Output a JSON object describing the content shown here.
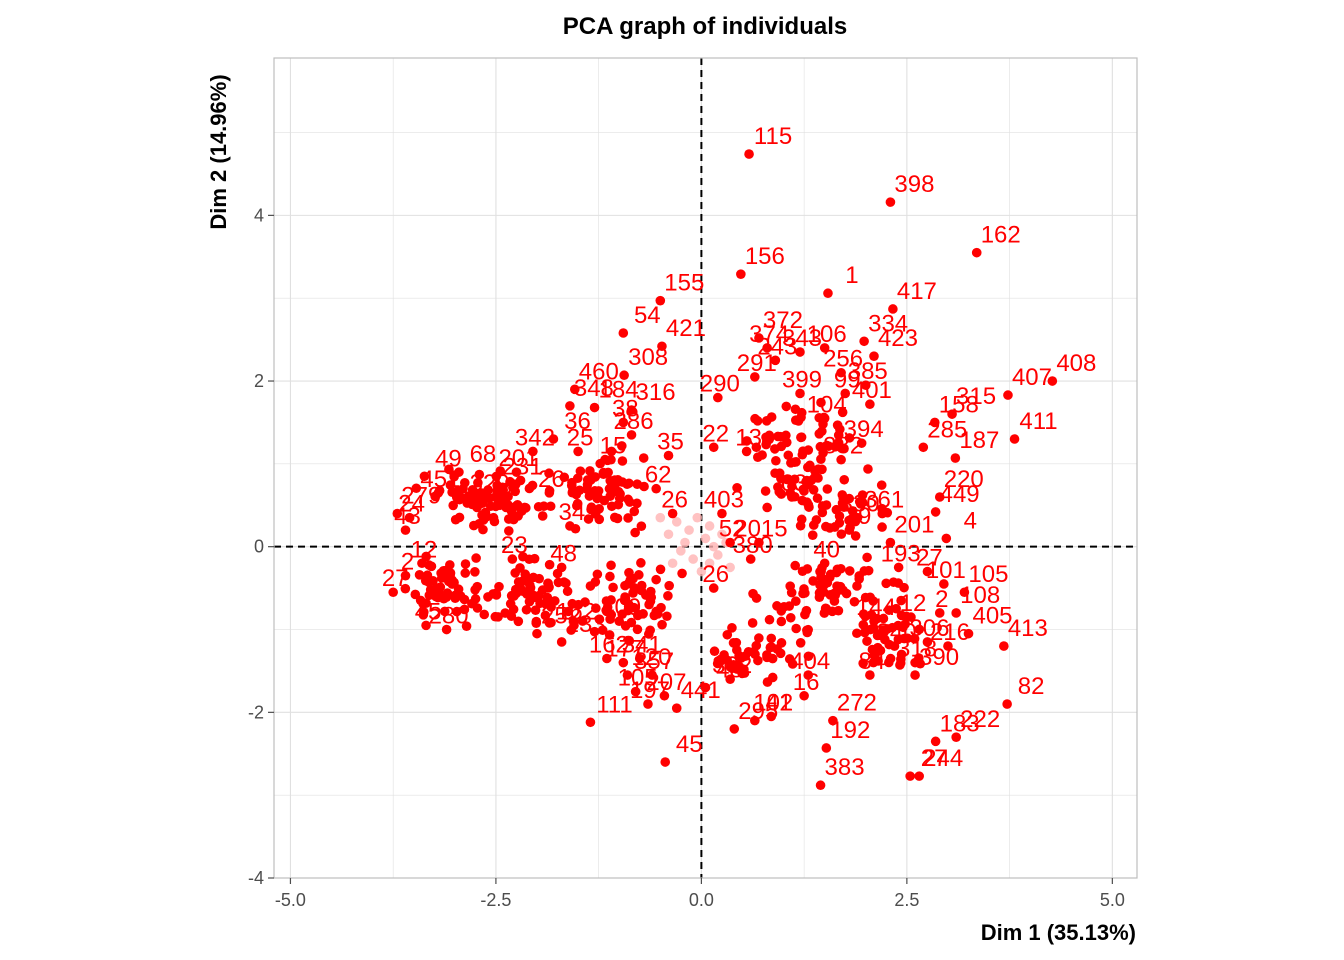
{
  "chart_data": {
    "type": "scatter",
    "title": "PCA graph of individuals",
    "xlabel": "Dim 1 (35.13%)",
    "ylabel": "Dim 2 (14.96%)",
    "xlim": [
      -5.2,
      5.3
    ],
    "ylim": [
      -4.0,
      5.9
    ],
    "x_ticks": [
      -5.0,
      -2.5,
      0.0,
      2.5,
      5.0
    ],
    "x_tick_labels": [
      "-5.0",
      "-2.5",
      "0.0",
      "2.5",
      "5.0"
    ],
    "y_ticks": [
      -4,
      -2,
      0,
      2,
      4
    ],
    "y_tick_labels": [
      "-4",
      "-2",
      "0",
      "2",
      "4"
    ],
    "grid": true,
    "reference_lines": {
      "x": 0,
      "y": 0,
      "style": "dashed"
    },
    "colors": {
      "point": "#ff0000",
      "point_faded": "#ffb3b3",
      "grid": "#e0e0e0",
      "panel_border": "#bdbdbd",
      "tick_text": "#4d4d4d"
    },
    "labeled_points": [
      {
        "label": "115",
        "x": 0.58,
        "y": 4.74
      },
      {
        "label": "398",
        "x": 2.3,
        "y": 4.16
      },
      {
        "label": "162",
        "x": 3.35,
        "y": 3.55
      },
      {
        "label": "156",
        "x": 0.48,
        "y": 3.29
      },
      {
        "label": "1",
        "x": 1.54,
        "y": 3.06
      },
      {
        "label": "417",
        "x": 2.33,
        "y": 2.87
      },
      {
        "label": "155",
        "x": -0.5,
        "y": 2.97
      },
      {
        "label": "421",
        "x": -0.48,
        "y": 2.42
      },
      {
        "label": "54",
        "x": -0.95,
        "y": 2.58
      },
      {
        "label": "308",
        "x": -0.94,
        "y": 2.07
      },
      {
        "label": "372",
        "x": 0.7,
        "y": 2.52
      },
      {
        "label": "334",
        "x": 1.98,
        "y": 2.48
      },
      {
        "label": "423",
        "x": 2.1,
        "y": 2.3
      },
      {
        "label": "408",
        "x": 4.27,
        "y": 2.0
      },
      {
        "label": "407",
        "x": 3.73,
        "y": 1.83
      },
      {
        "label": "411",
        "x": 3.81,
        "y": 1.3
      },
      {
        "label": "315",
        "x": 3.05,
        "y": 1.6
      },
      {
        "label": "158",
        "x": 2.84,
        "y": 1.5
      },
      {
        "label": "187",
        "x": 3.09,
        "y": 1.07
      },
      {
        "label": "285",
        "x": 2.7,
        "y": 1.2
      },
      {
        "label": "460",
        "x": -1.54,
        "y": 1.9
      },
      {
        "label": "348",
        "x": -1.6,
        "y": 1.7
      },
      {
        "label": "184",
        "x": -1.3,
        "y": 1.68
      },
      {
        "label": "316",
        "x": -0.85,
        "y": 1.65
      },
      {
        "label": "36",
        "x": -1.8,
        "y": 1.3
      },
      {
        "label": "49",
        "x": -3.37,
        "y": 0.85
      },
      {
        "label": "68",
        "x": -2.95,
        "y": 0.9
      },
      {
        "label": "279",
        "x": -3.7,
        "y": 0.4
      },
      {
        "label": "220",
        "x": 2.9,
        "y": 0.6
      },
      {
        "label": "449",
        "x": 2.85,
        "y": 0.42
      },
      {
        "label": "4",
        "x": 2.98,
        "y": 0.1
      },
      {
        "label": "201",
        "x": 2.3,
        "y": 0.05
      },
      {
        "label": "108",
        "x": 3.1,
        "y": -0.8
      },
      {
        "label": "105",
        "x": 3.2,
        "y": -0.55
      },
      {
        "label": "405",
        "x": 3.25,
        "y": -1.05
      },
      {
        "label": "413",
        "x": 3.68,
        "y": -1.2
      },
      {
        "label": "82",
        "x": 3.72,
        "y": -1.9
      },
      {
        "label": "222",
        "x": 3.1,
        "y": -2.3
      },
      {
        "label": "183",
        "x": 2.85,
        "y": -2.35
      },
      {
        "label": "244",
        "x": 2.65,
        "y": -2.77
      },
      {
        "label": "27",
        "x": 2.54,
        "y": -2.77
      },
      {
        "label": "390",
        "x": 2.6,
        "y": -1.55
      },
      {
        "label": "192",
        "x": 1.52,
        "y": -2.43
      },
      {
        "label": "383",
        "x": 1.45,
        "y": -2.88
      },
      {
        "label": "272",
        "x": 1.6,
        "y": -2.1
      },
      {
        "label": "295",
        "x": 0.4,
        "y": -2.2
      },
      {
        "label": "41",
        "x": 0.65,
        "y": -2.1
      },
      {
        "label": "48",
        "x": 0.05,
        "y": -1.7
      },
      {
        "label": "111",
        "x": -1.35,
        "y": -2.12
      },
      {
        "label": "45",
        "x": -0.44,
        "y": -2.6
      },
      {
        "label": "441",
        "x": -0.3,
        "y": -1.95
      },
      {
        "label": "120",
        "x": -0.9,
        "y": -1.55
      },
      {
        "label": "252",
        "x": -2.0,
        "y": -1.05
      },
      {
        "label": "133",
        "x": -1.7,
        "y": -1.15
      }
    ],
    "crowded_labels": [
      {
        "label": "291",
        "x": 0.65,
        "y": 2.05
      },
      {
        "label": "290",
        "x": 0.2,
        "y": 1.8
      },
      {
        "label": "399",
        "x": 1.2,
        "y": 1.85
      },
      {
        "label": "99",
        "x": 1.75,
        "y": 1.85
      },
      {
        "label": "401",
        "x": 2.05,
        "y": 1.72
      },
      {
        "label": "394",
        "x": 1.95,
        "y": 1.25
      },
      {
        "label": "382",
        "x": 1.7,
        "y": 1.05
      },
      {
        "label": "104",
        "x": 1.5,
        "y": 1.55
      },
      {
        "label": "256",
        "x": 1.7,
        "y": 2.1
      },
      {
        "label": "385",
        "x": 2.0,
        "y": 1.95
      },
      {
        "label": "343",
        "x": 1.2,
        "y": 2.35
      },
      {
        "label": "374",
        "x": 0.8,
        "y": 2.4
      },
      {
        "label": "106",
        "x": 1.5,
        "y": 2.4
      },
      {
        "label": "243",
        "x": 0.9,
        "y": 2.25
      },
      {
        "label": "13",
        "x": 0.55,
        "y": 1.15
      },
      {
        "label": "22",
        "x": 0.15,
        "y": 1.2
      },
      {
        "label": "403",
        "x": 0.25,
        "y": 0.4
      },
      {
        "label": "52",
        "x": 0.35,
        "y": 0.05
      },
      {
        "label": "2015",
        "x": 0.7,
        "y": 0.05
      },
      {
        "label": "63",
        "x": 1.1,
        "y": 0.6
      },
      {
        "label": "139",
        "x": 1.8,
        "y": 0.2
      },
      {
        "label": "361",
        "x": 2.2,
        "y": 0.4
      },
      {
        "label": "330",
        "x": 1.9,
        "y": 0.35
      },
      {
        "label": "380",
        "x": 0.6,
        "y": -0.15
      },
      {
        "label": "40",
        "x": 1.5,
        "y": -0.2
      },
      {
        "label": "193",
        "x": 2.4,
        "y": -0.25
      },
      {
        "label": "27",
        "x": 2.75,
        "y": -0.3
      },
      {
        "label": "101",
        "x": 2.95,
        "y": -0.45
      },
      {
        "label": "2",
        "x": 2.9,
        "y": -0.8
      },
      {
        "label": "12",
        "x": 2.55,
        "y": -0.85
      },
      {
        "label": "144",
        "x": 2.1,
        "y": -0.9
      },
      {
        "label": "306",
        "x": 2.75,
        "y": -1.15
      },
      {
        "label": "216",
        "x": 3.0,
        "y": -1.2
      },
      {
        "label": "318",
        "x": 2.6,
        "y": -1.4
      },
      {
        "label": "240",
        "x": 2.35,
        "y": -1.2
      },
      {
        "label": "84",
        "x": 2.05,
        "y": -1.55
      },
      {
        "label": "404",
        "x": 1.3,
        "y": -1.55
      },
      {
        "label": "16",
        "x": 1.25,
        "y": -1.8
      },
      {
        "label": "102",
        "x": 0.85,
        "y": -2.05
      },
      {
        "label": "302",
        "x": 0.35,
        "y": -1.6
      },
      {
        "label": "26",
        "x": 0.15,
        "y": -0.5
      },
      {
        "label": "341",
        "x": -0.75,
        "y": -1.35
      },
      {
        "label": "357",
        "x": -0.6,
        "y": -1.55
      },
      {
        "label": "177",
        "x": -0.95,
        "y": -1.4
      },
      {
        "label": "105",
        "x": -0.8,
        "y": -1.75
      },
      {
        "label": "197",
        "x": -0.65,
        "y": -1.9
      },
      {
        "label": "207",
        "x": -0.45,
        "y": -1.8
      },
      {
        "label": "162",
        "x": -1.15,
        "y": -1.35
      },
      {
        "label": "409",
        "x": -1.0,
        "y": -0.9
      },
      {
        "label": "162",
        "x": -1.55,
        "y": -0.95
      },
      {
        "label": "48",
        "x": -1.7,
        "y": -0.25
      },
      {
        "label": "23",
        "x": -2.3,
        "y": -0.15
      },
      {
        "label": "280",
        "x": -3.1,
        "y": -1.0
      },
      {
        "label": "45",
        "x": -3.35,
        "y": -0.95
      },
      {
        "label": "2",
        "x": -3.6,
        "y": -0.35
      },
      {
        "label": "12",
        "x": -3.4,
        "y": -0.2
      },
      {
        "label": "27",
        "x": -3.75,
        "y": -0.55
      },
      {
        "label": "24",
        "x": -3.55,
        "y": 0.35
      },
      {
        "label": "43",
        "x": -3.6,
        "y": 0.2
      },
      {
        "label": "451",
        "x": -3.2,
        "y": 0.65
      },
      {
        "label": "329",
        "x": -2.6,
        "y": 0.6
      },
      {
        "label": "201",
        "x": -2.25,
        "y": 0.9
      },
      {
        "label": "231",
        "x": -2.2,
        "y": 0.8
      },
      {
        "label": "26",
        "x": -1.85,
        "y": 0.65
      },
      {
        "label": "342",
        "x": -2.05,
        "y": 1.15
      },
      {
        "label": "25",
        "x": -1.5,
        "y": 1.15
      },
      {
        "label": "15",
        "x": -1.1,
        "y": 1.05
      },
      {
        "label": "35",
        "x": -0.4,
        "y": 1.1
      },
      {
        "label": "38",
        "x": -0.95,
        "y": 1.5
      },
      {
        "label": "286",
        "x": -0.85,
        "y": 1.35
      },
      {
        "label": "47",
        "x": -2.45,
        "y": 0.5
      },
      {
        "label": "62",
        "x": -0.55,
        "y": 0.7
      },
      {
        "label": "26",
        "x": -0.35,
        "y": 0.4
      },
      {
        "label": "34",
        "x": -1.6,
        "y": 0.25
      }
    ],
    "unlabeled_clusters": [
      {
        "cx": -2.6,
        "cy": 0.55,
        "sx": 0.55,
        "sy": 0.28,
        "n": 80
      },
      {
        "cx": -1.2,
        "cy": 0.7,
        "sx": 0.5,
        "sy": 0.35,
        "n": 70
      },
      {
        "cx": -3.0,
        "cy": -0.55,
        "sx": 0.4,
        "sy": 0.28,
        "n": 60
      },
      {
        "cx": -2.0,
        "cy": -0.6,
        "sx": 0.55,
        "sy": 0.35,
        "n": 70
      },
      {
        "cx": -0.9,
        "cy": -0.7,
        "sx": 0.45,
        "sy": 0.4,
        "n": 60
      },
      {
        "cx": 1.2,
        "cy": 1.1,
        "sx": 0.55,
        "sy": 0.55,
        "n": 85
      },
      {
        "cx": 1.6,
        "cy": -0.6,
        "sx": 0.65,
        "sy": 0.4,
        "n": 85
      },
      {
        "cx": 0.7,
        "cy": -1.3,
        "sx": 0.45,
        "sy": 0.3,
        "n": 40
      },
      {
        "cx": 2.3,
        "cy": -1.2,
        "sx": 0.4,
        "sy": 0.3,
        "n": 35
      },
      {
        "cx": 1.7,
        "cy": 0.4,
        "sx": 0.5,
        "sy": 0.35,
        "n": 40
      }
    ],
    "faded_points": [
      {
        "x": -0.3,
        "y": 0.3
      },
      {
        "x": -0.15,
        "y": 0.2
      },
      {
        "x": -0.2,
        "y": 0.05
      },
      {
        "x": 0.05,
        "y": 0.1
      },
      {
        "x": 0.15,
        "y": 0.0
      },
      {
        "x": 0.1,
        "y": -0.2
      },
      {
        "x": -0.1,
        "y": -0.15
      },
      {
        "x": -0.25,
        "y": -0.05
      },
      {
        "x": 0.2,
        "y": -0.1
      },
      {
        "x": -0.4,
        "y": 0.15
      },
      {
        "x": 0.0,
        "y": -0.3
      },
      {
        "x": 0.3,
        "y": 0.05
      },
      {
        "x": -0.05,
        "y": 0.35
      },
      {
        "x": 0.25,
        "y": 0.15
      },
      {
        "x": -0.35,
        "y": -0.2
      },
      {
        "x": 0.35,
        "y": -0.25
      },
      {
        "x": -0.5,
        "y": 0.35
      },
      {
        "x": 0.1,
        "y": 0.25
      }
    ]
  }
}
